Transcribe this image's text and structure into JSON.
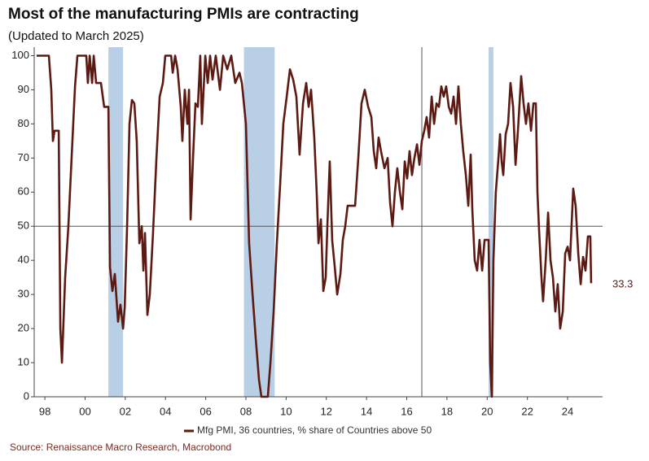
{
  "chart_data": {
    "type": "line",
    "title": "Most of the manufacturing PMIs are contracting",
    "subtitle": "(Updated to March 2025)",
    "source": "Source: Renaissance Macro Research, Macrobond",
    "x": [
      1997.59,
      1998.2,
      1998.32,
      1998.4,
      1998.48,
      1998.69,
      1998.77,
      1998.85,
      1999.01,
      1999.17,
      1999.33,
      1999.5,
      1999.62,
      2000.06,
      2000.14,
      2000.23,
      2000.35,
      2000.43,
      2000.55,
      2000.79,
      2000.95,
      2001.16,
      2001.24,
      2001.36,
      2001.48,
      2001.64,
      2001.76,
      2001.89,
      2001.97,
      2002.09,
      2002.21,
      2002.33,
      2002.45,
      2002.57,
      2002.7,
      2002.82,
      2002.9,
      2002.98,
      2003.1,
      2003.22,
      2003.38,
      2003.55,
      2003.71,
      2003.87,
      2003.99,
      2004.28,
      2004.36,
      2004.48,
      2004.6,
      2004.76,
      2004.84,
      2004.96,
      2005.09,
      2005.17,
      2005.25,
      2005.37,
      2005.49,
      2005.61,
      2005.73,
      2005.81,
      2005.98,
      2006.1,
      2006.22,
      2006.34,
      2006.5,
      2006.71,
      2006.87,
      2007.07,
      2007.27,
      2007.47,
      2007.68,
      2007.8,
      2008.0,
      2008.16,
      2008.33,
      2008.49,
      2008.65,
      2008.77,
      2009.09,
      2009.22,
      2009.38,
      2009.54,
      2009.7,
      2009.86,
      2010.03,
      2010.19,
      2010.35,
      2010.51,
      2010.67,
      2010.84,
      2011.0,
      2011.12,
      2011.24,
      2011.4,
      2011.52,
      2011.61,
      2011.73,
      2011.85,
      2011.97,
      2012.05,
      2012.17,
      2012.29,
      2012.42,
      2012.54,
      2012.7,
      2012.82,
      2012.94,
      2013.06,
      2013.19,
      2013.43,
      2013.59,
      2013.75,
      2013.91,
      2014.08,
      2014.24,
      2014.36,
      2014.48,
      2014.6,
      2014.72,
      2014.89,
      2015.05,
      2015.17,
      2015.29,
      2015.41,
      2015.53,
      2015.66,
      2015.78,
      2015.9,
      2016.02,
      2016.14,
      2016.26,
      2016.38,
      2016.51,
      2016.63,
      2016.75,
      2016.87,
      2016.99,
      2017.11,
      2017.24,
      2017.36,
      2017.48,
      2017.6,
      2017.72,
      2017.84,
      2017.96,
      2018.09,
      2018.21,
      2018.33,
      2018.45,
      2018.57,
      2018.69,
      2018.81,
      2018.94,
      2019.06,
      2019.18,
      2019.26,
      2019.38,
      2019.5,
      2019.62,
      2019.75,
      2019.87,
      2020.07,
      2020.15,
      2020.23,
      2020.31,
      2020.43,
      2020.56,
      2020.64,
      2020.72,
      2020.8,
      2020.92,
      2021.04,
      2021.16,
      2021.29,
      2021.41,
      2021.53,
      2021.69,
      2021.81,
      2021.93,
      2022.05,
      2022.18,
      2022.3,
      2022.42,
      2022.5,
      2022.58,
      2022.7,
      2022.78,
      2022.91,
      2023.03,
      2023.15,
      2023.27,
      2023.39,
      2023.51,
      2023.63,
      2023.76,
      2023.88,
      2024.0,
      2024.12,
      2024.28,
      2024.4,
      2024.53,
      2024.65,
      2024.77,
      2024.89,
      2025.01,
      2025.13,
      2025.17
    ],
    "series": [
      {
        "name": "Mfg PMI, 36 countries, % share of Countries above 50",
        "color": "#5c1a12",
        "values": [
          100,
          100,
          90,
          75,
          78,
          78,
          20,
          10,
          35,
          50,
          70,
          91,
          100,
          100,
          92,
          100,
          92,
          100,
          92,
          92,
          85,
          85,
          38,
          31,
          36,
          22,
          27,
          20,
          26,
          50,
          80,
          87,
          86,
          75,
          45,
          50,
          37,
          48,
          24,
          30,
          48,
          70,
          88,
          92,
          100,
          100,
          95,
          100,
          96,
          85,
          75,
          90,
          80,
          90,
          52,
          70,
          86,
          85,
          100,
          80,
          100,
          92,
          100,
          93,
          100,
          90,
          100,
          96,
          100,
          92,
          95,
          92,
          80,
          45,
          30,
          17,
          5,
          0,
          0,
          10,
          25,
          45,
          62,
          80,
          88,
          96,
          93,
          88,
          71,
          86,
          92,
          85,
          90,
          76,
          60,
          45,
          52,
          31,
          35,
          50,
          69,
          46,
          38,
          30,
          36,
          46,
          50,
          56,
          56,
          56,
          70,
          86,
          90,
          85,
          82,
          72,
          67,
          76,
          72,
          67,
          70,
          57,
          50,
          60,
          67,
          60,
          55,
          69,
          64,
          72,
          65,
          70,
          74,
          68,
          75,
          78,
          82,
          76,
          88,
          80,
          86,
          85,
          91,
          88,
          91,
          85,
          83,
          88,
          80,
          91,
          80,
          72,
          65,
          56,
          71,
          55,
          40,
          37,
          46,
          37,
          46,
          46,
          10,
          0,
          40,
          60,
          70,
          77,
          69,
          65,
          77,
          80,
          92,
          85,
          68,
          78,
          94,
          86,
          80,
          86,
          78,
          86,
          86,
          60,
          49,
          35,
          28,
          40,
          54,
          40,
          35,
          25,
          33,
          20,
          25,
          42,
          44,
          40,
          61,
          56,
          42,
          33,
          41,
          37,
          47,
          47,
          33.3
        ]
      }
    ],
    "xlim": [
      1997.47,
      2025.74
    ],
    "ylim": [
      0,
      102.5
    ],
    "yticks": [
      0,
      10,
      20,
      30,
      40,
      50,
      60,
      70,
      80,
      90,
      100
    ],
    "xticks": [
      {
        "value": 1998,
        "label": "98"
      },
      {
        "value": 2000,
        "label": "00"
      },
      {
        "value": 2002,
        "label": "02"
      },
      {
        "value": 2004,
        "label": "04"
      },
      {
        "value": 2006,
        "label": "06"
      },
      {
        "value": 2008,
        "label": "08"
      },
      {
        "value": 2010,
        "label": "10"
      },
      {
        "value": 2012,
        "label": "12"
      },
      {
        "value": 2014,
        "label": "14"
      },
      {
        "value": 2016,
        "label": "16"
      },
      {
        "value": 2018,
        "label": "18"
      },
      {
        "value": 2020,
        "label": "20"
      },
      {
        "value": 2022,
        "label": "22"
      },
      {
        "value": 2024,
        "label": "24"
      }
    ],
    "shaded_periods": [
      [
        2001.16,
        2001.89
      ],
      [
        2007.9,
        2009.43
      ],
      [
        2020.07,
        2020.31
      ]
    ],
    "shade_color": "#b8cfe6",
    "vline": 2016.75,
    "hline": 50
  }
}
